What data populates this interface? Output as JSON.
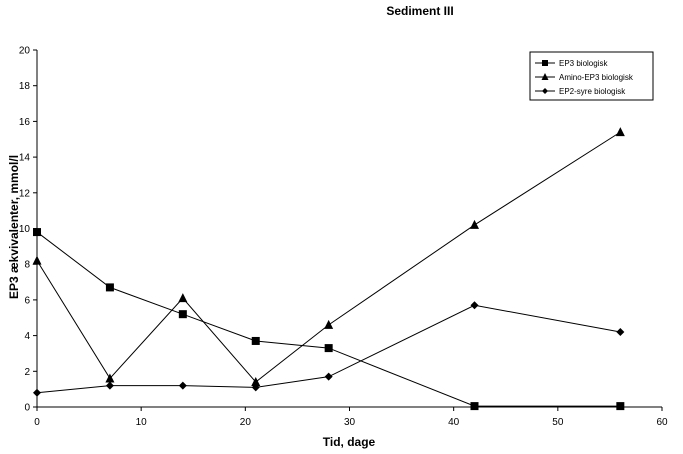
{
  "chart_data": {
    "type": "line",
    "title": "Sediment III",
    "xlabel": "Tid, dage",
    "ylabel": "EP3 ækvivalenter, mmol/l",
    "xlim": [
      0,
      60
    ],
    "ylim": [
      0,
      20
    ],
    "xticks": [
      "0",
      "10",
      "20",
      "30",
      "40",
      "50",
      "60"
    ],
    "yticks": [
      "0",
      "2",
      "4",
      "6",
      "8",
      "10",
      "12",
      "14",
      "16",
      "18",
      "20"
    ],
    "grid": false,
    "legend_position": "top-right",
    "series": [
      {
        "name": "EP3 biologisk",
        "marker": "square",
        "x": [
          0,
          7,
          14,
          21,
          28,
          42,
          56
        ],
        "y": [
          9.8,
          6.7,
          5.2,
          3.7,
          3.3,
          0.05,
          0.05
        ]
      },
      {
        "name": "Amino-EP3 biologisk",
        "marker": "triangle",
        "x": [
          0,
          7,
          14,
          21,
          28,
          42,
          56
        ],
        "y": [
          8.2,
          1.6,
          6.1,
          1.4,
          4.6,
          10.2,
          15.4
        ]
      },
      {
        "name": "EP2-syre biologisk",
        "marker": "diamond",
        "x": [
          0,
          7,
          14,
          21,
          28,
          42,
          56
        ],
        "y": [
          0.8,
          1.2,
          1.2,
          1.1,
          1.7,
          5.7,
          4.2
        ]
      }
    ]
  }
}
